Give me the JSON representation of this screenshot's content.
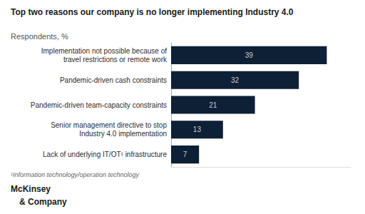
{
  "chart_data": {
    "type": "bar",
    "orientation": "horizontal",
    "title": "Top two reasons our company is no longer implementing Industry 4.0",
    "subtitle": "Respondents, %",
    "categories": [
      "Lack of underlying IT/OT¹ infrastructure",
      "Senior management directive to stop\nIndustry 4.0 implementation",
      "Pandemic-driven team-capacity constraints",
      "Pandemic-driven cash constraints",
      "Implementation not possible because of\ntravel restrictions or remote work"
    ],
    "values": [
      7,
      13,
      21,
      32,
      39
    ],
    "color": "#0d2035",
    "xlim": [
      0,
      45
    ],
    "data_labels": true,
    "tick_labels": "y",
    "grid": false,
    "footnote": "¹Information technology/operation technology",
    "annotations": [
      "McKinsey",
      "& Company"
    ]
  }
}
